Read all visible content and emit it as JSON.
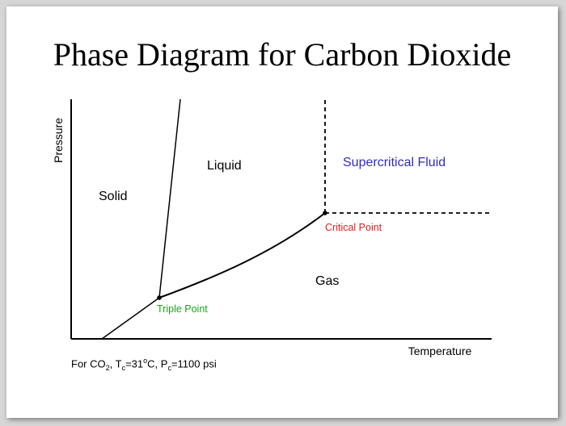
{
  "slide": {
    "title": "Phase Diagram for Carbon Dioxide"
  },
  "axes": {
    "y_label": "Pressure",
    "x_label": "Temperature"
  },
  "regions": {
    "solid": "Solid",
    "liquid": "Liquid",
    "gas": "Gas",
    "supercritical": "Supercritical Fluid"
  },
  "points": {
    "triple": "Triple Point",
    "critical": "Critical Point"
  },
  "footnote": {
    "prefix": "For CO",
    "co2_sub": "2",
    "sep1": ", T",
    "tc_sub": "c",
    "tc_value": "=31",
    "degree": "o",
    "tc_unit": "C, P",
    "pc_sub": "c",
    "pc_value": "=1100 psi"
  },
  "colors": {
    "supercritical": "#2e2ebf",
    "critical": "#e02020",
    "triple": "#1aa81a",
    "lines": "#000000"
  }
}
